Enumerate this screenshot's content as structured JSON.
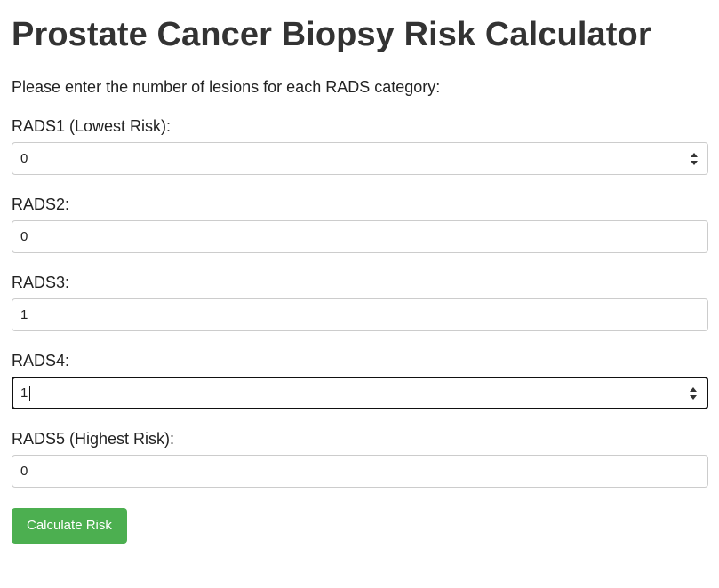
{
  "page": {
    "title": "Prostate Cancer Biopsy Risk Calculator",
    "intro": "Please enter the number of lesions for each RADS category:"
  },
  "fields": [
    {
      "label": "RADS1 (Lowest Risk):",
      "value": "0",
      "spinner_visible": true,
      "focused": false
    },
    {
      "label": "RADS2:",
      "value": "0",
      "spinner_visible": false,
      "focused": false
    },
    {
      "label": "RADS3:",
      "value": "1",
      "spinner_visible": false,
      "focused": false
    },
    {
      "label": "RADS4:",
      "value": "1",
      "spinner_visible": true,
      "focused": true
    },
    {
      "label": "RADS5 (Highest Risk):",
      "value": "0",
      "spinner_visible": false,
      "focused": false
    }
  ],
  "button": {
    "label": "Calculate Risk",
    "color": "#4caf50",
    "text_color": "#ffffff"
  },
  "icons": {
    "spinner": "up-down-arrows-icon"
  }
}
